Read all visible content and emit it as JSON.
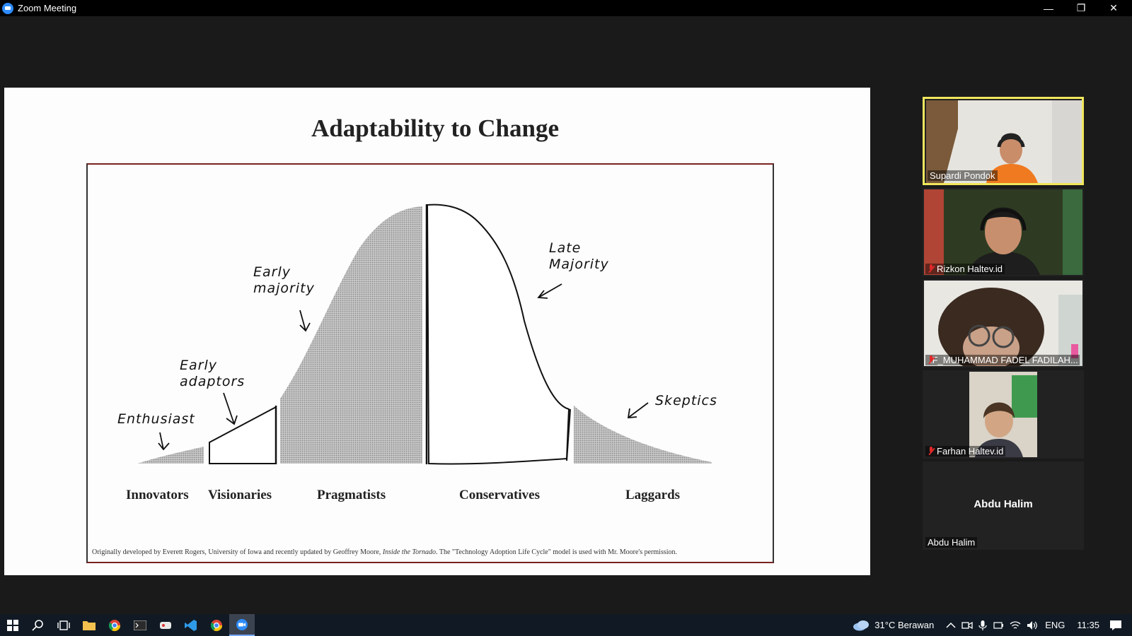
{
  "window": {
    "title": "Zoom Meeting",
    "minimize_glyph": "—",
    "restore_glyph": "❐",
    "close_glyph": "✕"
  },
  "slide": {
    "title": "Adaptability to Change",
    "categories": [
      "Innovators",
      "Visionaries",
      "Pragmatists",
      "Conservatives",
      "Laggards"
    ],
    "handwritten": {
      "enthusiast": "Enthusiast",
      "early_adaptors": "Early adaptors",
      "early_majority": "Early majority",
      "late_majority": "Late Majority",
      "skeptics": "Skeptics"
    },
    "footnote_a": "Originally developed by Everett Rogers, University of Iowa and recently updated by Geoffrey Moore, ",
    "footnote_b": "Inside the Tornado",
    "footnote_c": ". The \"Technology Adoption Life Cycle\" model is used with Mr. Moore's permission.",
    "shading_color": "#a9a9a9"
  },
  "participants": [
    {
      "name": "Supardi Pondok",
      "muted": false,
      "active_speaker": true,
      "video": true
    },
    {
      "name": "Rizkon Haltev.id",
      "muted": true,
      "active_speaker": false,
      "video": true
    },
    {
      "name": "IF_MUHAMMAD FADEL FADILAH...",
      "muted": true,
      "active_speaker": false,
      "video": true
    },
    {
      "name": "Farhan Haltev.id",
      "muted": true,
      "active_speaker": false,
      "video": true
    },
    {
      "name": "Abdu Halim",
      "muted": false,
      "active_speaker": false,
      "video": false,
      "center_label": "Abdu Halim"
    }
  ],
  "taskbar": {
    "weather": "31°C  Berawan",
    "language": "ENG",
    "time": "11:35"
  },
  "colors": {
    "active_speaker_border": "#f0e65c",
    "zoom_blue": "#2d8cff",
    "taskbar": "#111a24"
  }
}
